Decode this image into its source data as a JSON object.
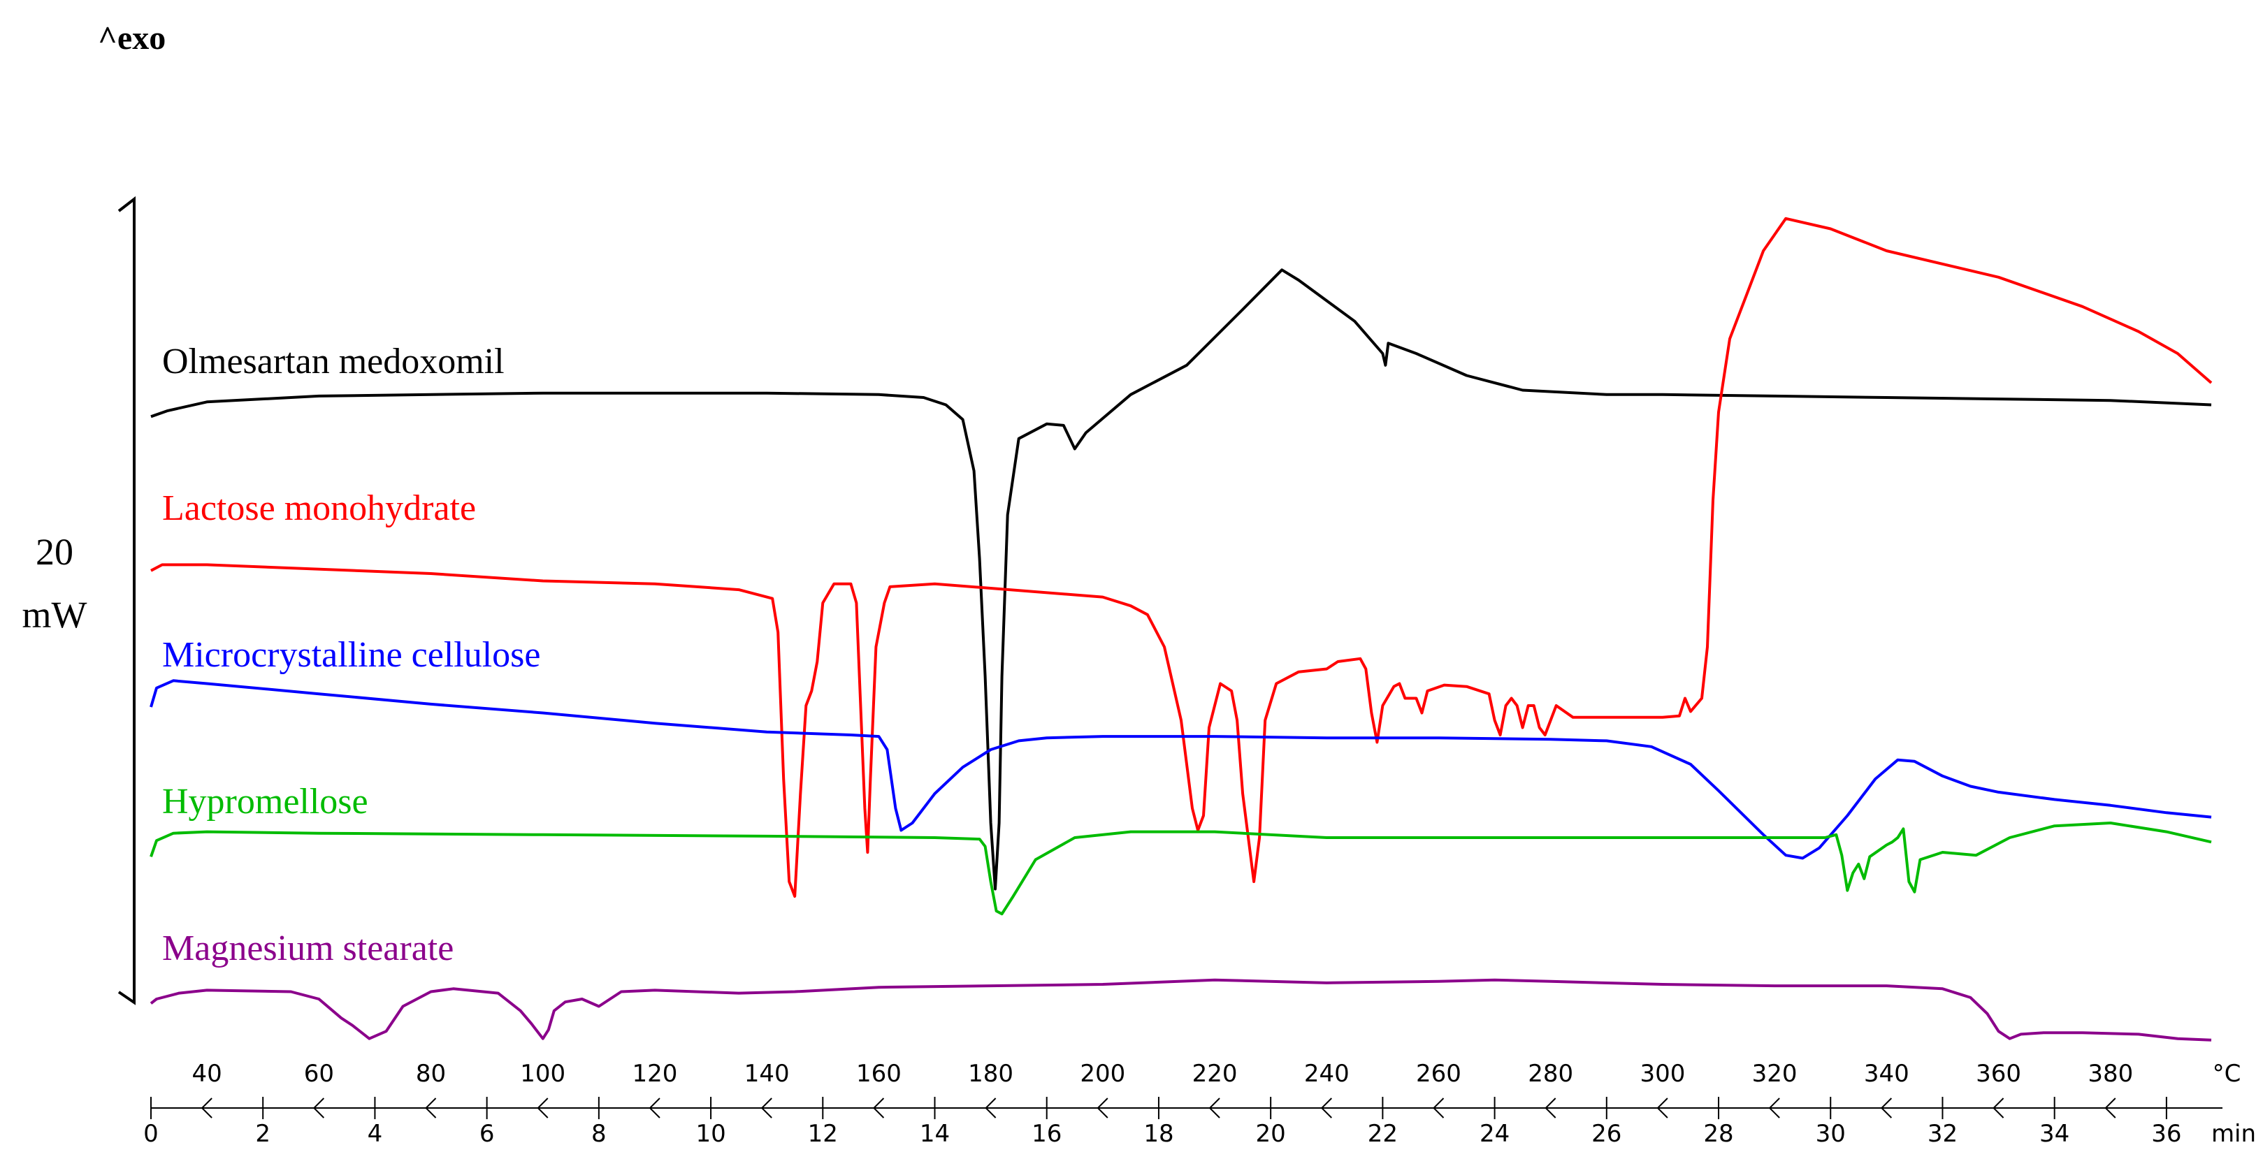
{
  "chart_data": {
    "type": "line",
    "title": "",
    "exo_label": "^exo",
    "scale_bar": {
      "value": "20",
      "unit": "mW"
    },
    "temperature_axis": {
      "unit": "°C",
      "range": [
        30,
        400
      ],
      "ticks": [
        40,
        60,
        80,
        100,
        120,
        140,
        160,
        180,
        200,
        220,
        240,
        260,
        280,
        300,
        320,
        340,
        360,
        380
      ]
    },
    "time_axis": {
      "unit": "min",
      "range": [
        0,
        37
      ],
      "ticks": [
        0,
        2,
        4,
        6,
        8,
        10,
        12,
        14,
        16,
        18,
        20,
        22,
        24,
        26,
        28,
        30,
        32,
        34,
        36
      ]
    },
    "series": [
      {
        "name": "Olmesartan medoxomil",
        "color": "#000000",
        "offset": 400,
        "points": [
          [
            30,
            397
          ],
          [
            33,
            401
          ],
          [
            40,
            407
          ],
          [
            60,
            411
          ],
          [
            100,
            413
          ],
          [
            140,
            413
          ],
          [
            160,
            412
          ],
          [
            168,
            410
          ],
          [
            172,
            405
          ],
          [
            175,
            395
          ],
          [
            177,
            360
          ],
          [
            178,
            300
          ],
          [
            179,
            220
          ],
          [
            180,
            120
          ],
          [
            180.8,
            75
          ],
          [
            181.5,
            120
          ],
          [
            182,
            220
          ],
          [
            183,
            330
          ],
          [
            185,
            382
          ],
          [
            190,
            392
          ],
          [
            193,
            391
          ],
          [
            195,
            375
          ],
          [
            197,
            386
          ],
          [
            205,
            412
          ],
          [
            215,
            432
          ],
          [
            225,
            470
          ],
          [
            232,
            497
          ],
          [
            235,
            490
          ],
          [
            245,
            462
          ],
          [
            250,
            440
          ],
          [
            250.5,
            432
          ],
          [
            251,
            447
          ],
          [
            256,
            440
          ],
          [
            265,
            425
          ],
          [
            275,
            415
          ],
          [
            290,
            412
          ],
          [
            300,
            412
          ],
          [
            320,
            411
          ],
          [
            340,
            410
          ],
          [
            360,
            409
          ],
          [
            380,
            408
          ],
          [
            398,
            405
          ]
        ]
      },
      {
        "name": "Lactose monohydrate",
        "color": "#ff0000",
        "offset": 300,
        "points": [
          [
            30,
            292
          ],
          [
            32,
            296
          ],
          [
            40,
            296
          ],
          [
            80,
            290
          ],
          [
            100,
            285
          ],
          [
            120,
            283
          ],
          [
            135,
            279
          ],
          [
            141,
            273
          ],
          [
            142,
            250
          ],
          [
            143,
            150
          ],
          [
            144,
            80
          ],
          [
            145,
            70
          ],
          [
            146,
            140
          ],
          [
            147,
            200
          ],
          [
            148,
            210
          ],
          [
            149,
            230
          ],
          [
            150,
            270
          ],
          [
            152,
            283
          ],
          [
            155,
            283
          ],
          [
            156,
            270
          ],
          [
            157.5,
            130
          ],
          [
            158,
            100
          ],
          [
            158.5,
            150
          ],
          [
            159.5,
            240
          ],
          [
            161,
            270
          ],
          [
            162,
            281
          ],
          [
            170,
            283
          ],
          [
            180,
            280
          ],
          [
            200,
            274
          ],
          [
            205,
            268
          ],
          [
            208,
            262
          ],
          [
            211,
            240
          ],
          [
            214,
            190
          ],
          [
            216,
            130
          ],
          [
            217,
            115
          ],
          [
            218,
            125
          ],
          [
            219,
            185
          ],
          [
            221,
            215
          ],
          [
            223,
            210
          ],
          [
            224,
            190
          ],
          [
            225,
            140
          ],
          [
            226,
            110
          ],
          [
            227,
            80
          ],
          [
            228,
            110
          ],
          [
            229,
            190
          ],
          [
            231,
            215
          ],
          [
            235,
            223
          ],
          [
            240,
            225
          ],
          [
            242,
            230
          ],
          [
            246,
            232
          ],
          [
            247,
            225
          ],
          [
            248,
            195
          ],
          [
            249,
            175
          ],
          [
            250,
            200
          ],
          [
            252,
            213
          ],
          [
            253,
            215
          ],
          [
            254,
            205
          ],
          [
            256,
            205
          ],
          [
            257,
            195
          ],
          [
            258,
            210
          ],
          [
            261,
            214
          ],
          [
            265,
            213
          ],
          [
            269,
            208
          ],
          [
            270,
            190
          ],
          [
            271,
            180
          ],
          [
            272,
            200
          ],
          [
            273,
            205
          ],
          [
            274,
            200
          ],
          [
            275,
            185
          ],
          [
            276,
            200
          ],
          [
            277,
            200
          ],
          [
            278,
            185
          ],
          [
            279,
            180
          ],
          [
            280,
            190
          ],
          [
            281,
            200
          ],
          [
            284,
            192
          ],
          [
            300,
            192
          ],
          [
            303,
            193
          ],
          [
            304,
            205
          ],
          [
            305,
            196
          ],
          [
            307,
            205
          ],
          [
            308,
            240
          ],
          [
            309,
            340
          ],
          [
            310,
            400
          ],
          [
            312,
            450
          ],
          [
            315,
            480
          ],
          [
            318,
            510
          ],
          [
            322,
            532
          ],
          [
            330,
            525
          ],
          [
            340,
            510
          ],
          [
            360,
            492
          ],
          [
            375,
            472
          ],
          [
            385,
            455
          ],
          [
            392,
            440
          ],
          [
            398,
            420
          ]
        ]
      },
      {
        "name": "Microcrystalline cellulose",
        "color": "#0000ff",
        "offset": 200,
        "points": [
          [
            30,
            199
          ],
          [
            31,
            212
          ],
          [
            34,
            217
          ],
          [
            40,
            215
          ],
          [
            60,
            208
          ],
          [
            80,
            201
          ],
          [
            100,
            195
          ],
          [
            120,
            188
          ],
          [
            140,
            182
          ],
          [
            155,
            180
          ],
          [
            160,
            179
          ],
          [
            161.5,
            170
          ],
          [
            163,
            130
          ],
          [
            164,
            115
          ],
          [
            166,
            120
          ],
          [
            170,
            140
          ],
          [
            175,
            158
          ],
          [
            180,
            170
          ],
          [
            185,
            176
          ],
          [
            190,
            178
          ],
          [
            200,
            179
          ],
          [
            220,
            179
          ],
          [
            240,
            178
          ],
          [
            260,
            178
          ],
          [
            280,
            177
          ],
          [
            290,
            176
          ],
          [
            298,
            172
          ],
          [
            305,
            160
          ],
          [
            310,
            142
          ],
          [
            318,
            112
          ],
          [
            322,
            98
          ],
          [
            325,
            96
          ],
          [
            328,
            103
          ],
          [
            333,
            125
          ],
          [
            338,
            150
          ],
          [
            342,
            163
          ],
          [
            345,
            162
          ],
          [
            350,
            152
          ],
          [
            355,
            145
          ],
          [
            360,
            141
          ],
          [
            370,
            136
          ],
          [
            380,
            132
          ],
          [
            390,
            127
          ],
          [
            398,
            124
          ]
        ]
      },
      {
        "name": "Hypromellose",
        "color": "#00bb00",
        "offset": 100,
        "points": [
          [
            30,
            97
          ],
          [
            31,
            108
          ],
          [
            34,
            113
          ],
          [
            40,
            114
          ],
          [
            60,
            113
          ],
          [
            100,
            112
          ],
          [
            140,
            111
          ],
          [
            170,
            110
          ],
          [
            178,
            109
          ],
          [
            179,
            104
          ],
          [
            180,
            80
          ],
          [
            181,
            60
          ],
          [
            182,
            58
          ],
          [
            184,
            70
          ],
          [
            188,
            95
          ],
          [
            195,
            110
          ],
          [
            205,
            114
          ],
          [
            220,
            114
          ],
          [
            240,
            110
          ],
          [
            260,
            110
          ],
          [
            300,
            110
          ],
          [
            329,
            110
          ],
          [
            331,
            112
          ],
          [
            332,
            98
          ],
          [
            333,
            74
          ],
          [
            334,
            86
          ],
          [
            335,
            92
          ],
          [
            336,
            82
          ],
          [
            337,
            97
          ],
          [
            340,
            105
          ],
          [
            341,
            107
          ],
          [
            342,
            110
          ],
          [
            343,
            116
          ],
          [
            344,
            80
          ],
          [
            345,
            73
          ],
          [
            346,
            95
          ],
          [
            350,
            100
          ],
          [
            356,
            98
          ],
          [
            362,
            110
          ],
          [
            370,
            118
          ],
          [
            380,
            120
          ],
          [
            390,
            114
          ],
          [
            398,
            107
          ]
        ]
      },
      {
        "name": "Magnesium stearate",
        "color": "#8b008b",
        "offset": 0,
        "points": [
          [
            30,
            -3
          ],
          [
            31,
            0
          ],
          [
            35,
            4
          ],
          [
            40,
            6
          ],
          [
            55,
            5
          ],
          [
            60,
            0
          ],
          [
            64,
            -13
          ],
          [
            66,
            -18
          ],
          [
            69,
            -27
          ],
          [
            72,
            -22
          ],
          [
            75,
            -5
          ],
          [
            80,
            5
          ],
          [
            84,
            7
          ],
          [
            92,
            4
          ],
          [
            96,
            -8
          ],
          [
            98,
            -17
          ],
          [
            99,
            -22
          ],
          [
            100,
            -27
          ],
          [
            101,
            -21
          ],
          [
            102,
            -8
          ],
          [
            104,
            -2
          ],
          [
            107,
            0
          ],
          [
            110,
            -5
          ],
          [
            114,
            5
          ],
          [
            120,
            6
          ],
          [
            135,
            4
          ],
          [
            145,
            5
          ],
          [
            160,
            8
          ],
          [
            180,
            9
          ],
          [
            200,
            10
          ],
          [
            220,
            13
          ],
          [
            240,
            11
          ],
          [
            260,
            12
          ],
          [
            270,
            13
          ],
          [
            280,
            12
          ],
          [
            300,
            10
          ],
          [
            320,
            9
          ],
          [
            340,
            9
          ],
          [
            350,
            7
          ],
          [
            355,
            1
          ],
          [
            358,
            -10
          ],
          [
            360,
            -22
          ],
          [
            362,
            -27
          ],
          [
            364,
            -24
          ],
          [
            368,
            -23
          ],
          [
            375,
            -23
          ],
          [
            385,
            -24
          ],
          [
            392,
            -27
          ],
          [
            398,
            -28
          ]
        ]
      }
    ]
  }
}
